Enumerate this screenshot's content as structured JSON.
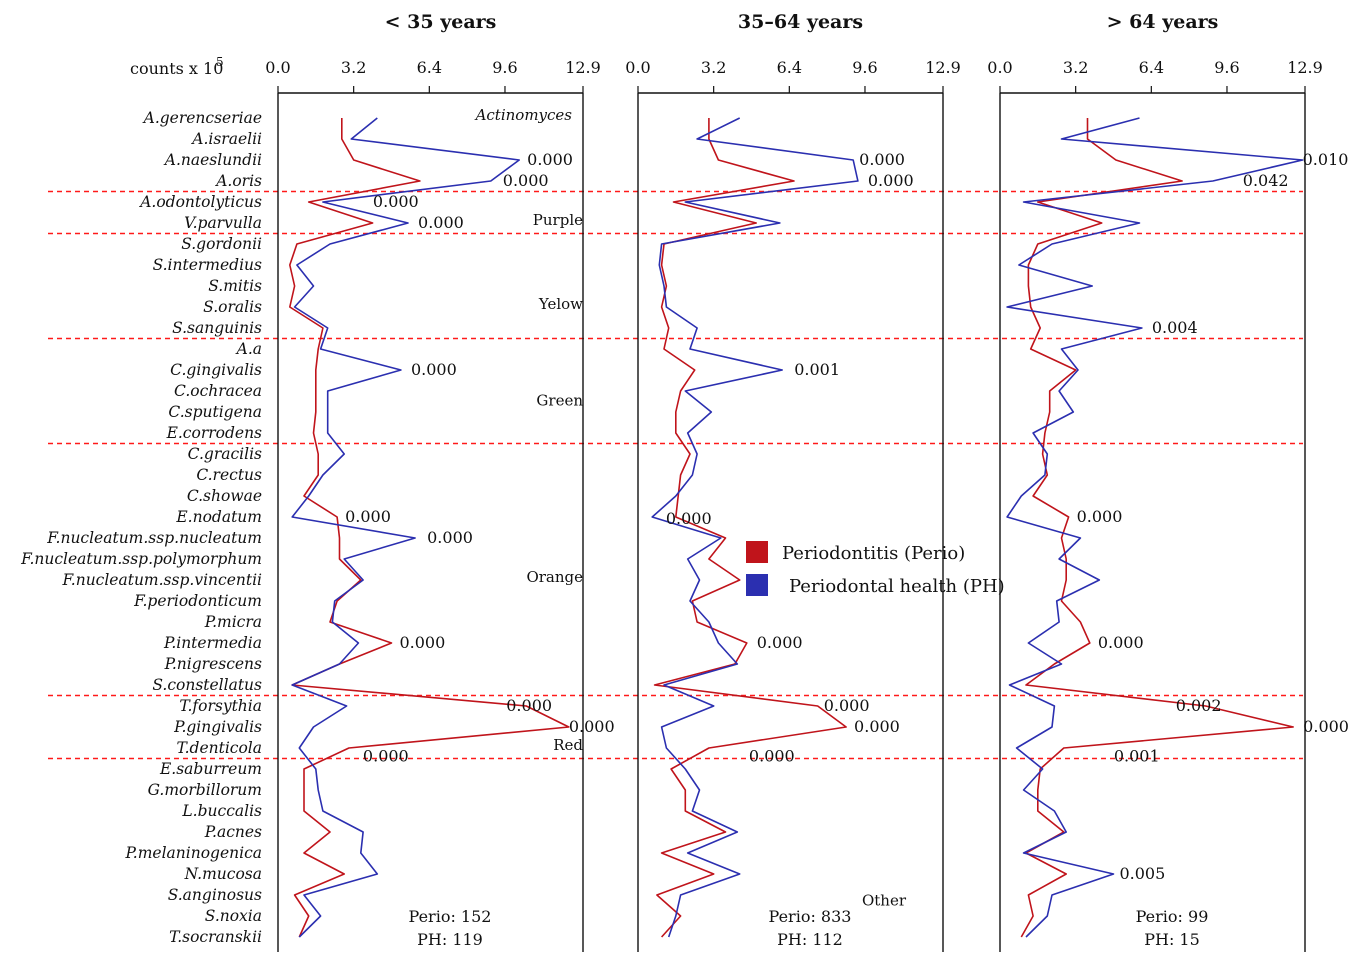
{
  "chart_data": {
    "type": "line",
    "counts_label": "counts x 10",
    "counts_exponent": "5",
    "axis_ticks": [
      "0.0",
      "3.2",
      "6.4",
      "9.6",
      "12.9"
    ],
    "xlim": [
      0,
      12.9
    ],
    "species": [
      "A.gerencseriae",
      "A.israelii",
      "A.naeslundii",
      "A.oris",
      "A.odontolyticus",
      "V.parvulla",
      "S.gordonii",
      "S.intermedius",
      "S.mitis",
      "S.oralis",
      "S.sanguinis",
      "A.a",
      "C.gingivalis",
      "C.ochracea",
      "C.sputigena",
      "E.corrodens",
      "C.gracilis",
      "C.rectus",
      "C.showae",
      "E.nodatum",
      "F.nucleatum.ssp.nucleatum",
      "F.nucleatum.ssp.polymorphum",
      "F.nucleatum.ssp.vincentii",
      "F.periodonticum",
      "P.micra",
      "P.intermedia",
      "P.nigrescens",
      "S.constellatus",
      "T.forsythia",
      "P.gingivalis",
      "T.denticola",
      "E.saburreum",
      "G.morbillorum",
      "L.buccalis",
      "P.acnes",
      "P.melaninogenica",
      "N.mucosa",
      "S.anginosus",
      "S.noxia",
      "T.socranskii"
    ],
    "groups": [
      {
        "label": "Actinomyces",
        "row": 0
      },
      {
        "label": "Purple",
        "row": 5
      },
      {
        "label": "Yelow",
        "row": 9
      },
      {
        "label": "Green",
        "row": 13.6
      },
      {
        "label": "Orange",
        "row": 22
      },
      {
        "label": "Red",
        "row": 30
      },
      {
        "label": "Other",
        "row": 37.4
      }
    ],
    "group_separators": [
      3.5,
      5.5,
      10.5,
      15.5,
      27.5,
      30.5
    ],
    "legend": [
      {
        "label": "Periodontitis (Perio)",
        "color": "#c0141b"
      },
      {
        "label": "Periodontal health (PH)",
        "color": "#2b2fb0"
      }
    ],
    "series_colors": {
      "perio": "#c0141b",
      "ph": "#2b2fb0",
      "separator": "#ff1a1a"
    },
    "panels": [
      {
        "title": "< 35 years",
        "perio": [
          2.7,
          2.7,
          3.2,
          6.0,
          1.3,
          4.0,
          0.8,
          0.5,
          0.7,
          0.5,
          1.9,
          1.7,
          1.6,
          1.6,
          1.6,
          1.5,
          1.7,
          1.7,
          1.1,
          2.5,
          2.6,
          2.6,
          3.5,
          2.5,
          2.2,
          4.8,
          2.6,
          0.6,
          10.5,
          12.3,
          3.0,
          1.1,
          1.1,
          1.1,
          2.2,
          1.1,
          2.8,
          0.7,
          1.3,
          0.9
        ],
        "ph": [
          4.2,
          3.1,
          10.2,
          9.0,
          1.9,
          5.5,
          2.2,
          0.8,
          1.5,
          0.7,
          2.1,
          1.8,
          5.2,
          2.1,
          2.1,
          2.1,
          2.8,
          1.9,
          1.3,
          0.6,
          5.8,
          2.8,
          3.6,
          2.4,
          2.3,
          3.4,
          2.6,
          0.6,
          2.9,
          1.5,
          0.9,
          1.6,
          1.7,
          1.9,
          3.6,
          3.5,
          4.2,
          1.1,
          1.8,
          0.9
        ],
        "pvalues": [
          {
            "row": 2,
            "text": "0.000",
            "dx": 8
          },
          {
            "row": 3,
            "text": "0.000",
            "dx": 12
          },
          {
            "row": 4,
            "text": "0.000",
            "dx": 50
          },
          {
            "row": 5,
            "text": "0.000",
            "dx": 10
          },
          {
            "row": 12,
            "text": "0.000",
            "dx": 10
          },
          {
            "row": 19,
            "text": "0.000",
            "dx": 8
          },
          {
            "row": 20,
            "text": "0.000",
            "dx": 12
          },
          {
            "row": 25,
            "text": "0.000",
            "dx": 8
          },
          {
            "row": 28,
            "text": "0.000",
            "dx": -20
          },
          {
            "row": 29,
            "text": "0.000",
            "dx": 0
          },
          {
            "row": 30.4,
            "text": "0.000",
            "dx": 14
          }
        ],
        "perio_n": "Perio: 152",
        "ph_n": "PH: 119"
      },
      {
        "title": "35–64 years",
        "perio": [
          3.0,
          3.0,
          3.4,
          6.6,
          1.5,
          5.0,
          1.1,
          1.0,
          1.2,
          1.0,
          1.3,
          1.1,
          2.4,
          1.8,
          1.6,
          1.6,
          2.2,
          1.8,
          1.7,
          1.6,
          3.7,
          3.0,
          4.3,
          2.3,
          2.5,
          4.6,
          4.1,
          0.7,
          7.6,
          8.8,
          3.0,
          1.4,
          2.0,
          2.0,
          3.7,
          1.0,
          3.2,
          0.8,
          1.8,
          1.0
        ],
        "ph": [
          4.3,
          2.5,
          9.1,
          9.3,
          2.0,
          6.0,
          1.0,
          0.9,
          1.1,
          1.2,
          2.5,
          2.2,
          6.1,
          2.0,
          3.1,
          2.1,
          2.5,
          2.3,
          1.6,
          0.6,
          3.5,
          2.1,
          2.6,
          2.2,
          3.0,
          3.4,
          4.2,
          1.1,
          3.2,
          1.0,
          1.2,
          2.0,
          2.6,
          2.3,
          4.2,
          2.1,
          4.3,
          1.8,
          1.6,
          1.3
        ],
        "pvalues": [
          {
            "row": 2,
            "text": "0.000",
            "dx": 6
          },
          {
            "row": 3,
            "text": "0.000",
            "dx": 10
          },
          {
            "row": 12,
            "text": "0.001",
            "dx": 12
          },
          {
            "row": 19.1,
            "text": "0.000",
            "dx": -10
          },
          {
            "row": 25,
            "text": "0.000",
            "dx": 10
          },
          {
            "row": 28,
            "text": "0.000",
            "dx": 6
          },
          {
            "row": 29,
            "text": "0.000",
            "dx": 8
          },
          {
            "row": 30.4,
            "text": "0.000",
            "dx": 40
          }
        ],
        "perio_n": "Perio: 833",
        "ph_n": "PH: 112"
      },
      {
        "title": "> 64 years",
        "perio": [
          3.7,
          3.7,
          4.9,
          7.7,
          1.6,
          4.3,
          1.6,
          1.2,
          1.2,
          1.3,
          1.7,
          1.3,
          3.2,
          2.1,
          2.1,
          1.9,
          1.8,
          2.0,
          1.4,
          2.9,
          2.6,
          2.8,
          2.8,
          2.6,
          3.4,
          3.8,
          2.3,
          1.1,
          8.7,
          12.4,
          2.7,
          1.7,
          1.6,
          1.6,
          2.7,
          1.1,
          2.8,
          1.2,
          1.4,
          0.9
        ],
        "ph": [
          5.9,
          2.6,
          12.8,
          9.0,
          1.0,
          5.9,
          2.2,
          0.8,
          3.9,
          0.3,
          6.0,
          2.6,
          3.3,
          2.5,
          3.1,
          1.4,
          2.0,
          1.9,
          0.9,
          0.3,
          3.4,
          2.5,
          4.2,
          2.4,
          2.5,
          1.2,
          2.6,
          0.4,
          2.3,
          2.2,
          0.7,
          1.8,
          1.0,
          2.3,
          2.8,
          1.0,
          4.8,
          2.2,
          2.0,
          1.1
        ],
        "pvalues": [
          {
            "row": 2,
            "text": "0.010",
            "dx": 0
          },
          {
            "row": 3,
            "text": "0.042",
            "dx": 30
          },
          {
            "row": 10,
            "text": "0.004",
            "dx": 10
          },
          {
            "row": 19,
            "text": "0.000",
            "dx": 8
          },
          {
            "row": 25,
            "text": "0.000",
            "dx": 8
          },
          {
            "row": 28,
            "text": "0.002",
            "dx": -30
          },
          {
            "row": 29,
            "text": "0.000",
            "dx": 10
          },
          {
            "row": 30.4,
            "text": "0.001",
            "dx": 50
          },
          {
            "row": 36,
            "text": "0.005",
            "dx": 6
          }
        ],
        "perio_n": "Perio: 99",
        "ph_n": "PH: 15"
      }
    ]
  }
}
